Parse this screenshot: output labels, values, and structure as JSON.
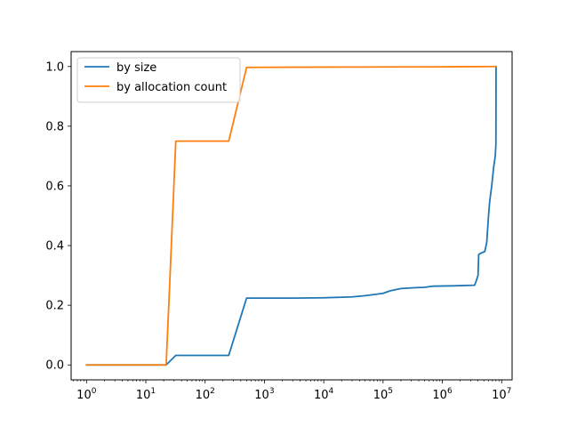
{
  "chart_data": {
    "type": "line",
    "title": "",
    "xlabel": "",
    "ylabel": "",
    "x_scale": "log",
    "xlim": [
      0.55,
      15000000
    ],
    "ylim": [
      -0.05,
      1.05
    ],
    "grid": false,
    "legend_position": "top-left",
    "x_ticks": [
      {
        "value": 1,
        "base": "10",
        "exp": "0"
      },
      {
        "value": 10,
        "base": "10",
        "exp": "1"
      },
      {
        "value": 100,
        "base": "10",
        "exp": "2"
      },
      {
        "value": 1000,
        "base": "10",
        "exp": "3"
      },
      {
        "value": 10000,
        "base": "10",
        "exp": "4"
      },
      {
        "value": 100000,
        "base": "10",
        "exp": "5"
      },
      {
        "value": 1000000,
        "base": "10",
        "exp": "6"
      },
      {
        "value": 10000000,
        "base": "10",
        "exp": "7"
      }
    ],
    "y_ticks": [
      {
        "value": 0.0,
        "label": "0.0"
      },
      {
        "value": 0.2,
        "label": "0.2"
      },
      {
        "value": 0.4,
        "label": "0.4"
      },
      {
        "value": 0.6,
        "label": "0.6"
      },
      {
        "value": 0.8,
        "label": "0.8"
      },
      {
        "value": 1.0,
        "label": "1.0"
      }
    ],
    "series": [
      {
        "name": "by size",
        "color": "#1f77b4",
        "points": [
          [
            1,
            0.0
          ],
          [
            22,
            0.0
          ],
          [
            32,
            0.032
          ],
          [
            250,
            0.032
          ],
          [
            500,
            0.224
          ],
          [
            3000,
            0.224
          ],
          [
            10000,
            0.225
          ],
          [
            30000,
            0.228
          ],
          [
            50000,
            0.232
          ],
          [
            100000,
            0.24
          ],
          [
            130000,
            0.248
          ],
          [
            200000,
            0.256
          ],
          [
            350000,
            0.259
          ],
          [
            500000,
            0.26
          ],
          [
            700000,
            0.264
          ],
          [
            1500000,
            0.265
          ],
          [
            3500000,
            0.267
          ],
          [
            3700000,
            0.28
          ],
          [
            4000000,
            0.3
          ],
          [
            4100000,
            0.37
          ],
          [
            4500000,
            0.375
          ],
          [
            5200000,
            0.38
          ],
          [
            5600000,
            0.41
          ],
          [
            6000000,
            0.5
          ],
          [
            6300000,
            0.55
          ],
          [
            6800000,
            0.6
          ],
          [
            7300000,
            0.66
          ],
          [
            7800000,
            0.7
          ],
          [
            8000000,
            0.74
          ],
          [
            8050000,
            1.0
          ]
        ]
      },
      {
        "name": "by allocation count",
        "color": "#ff7f0e",
        "points": [
          [
            1,
            0.0
          ],
          [
            22,
            0.0
          ],
          [
            25,
            0.25
          ],
          [
            32,
            0.75
          ],
          [
            250,
            0.75
          ],
          [
            500,
            0.997
          ],
          [
            10000,
            0.998
          ],
          [
            1000000,
            0.999
          ],
          [
            8000000,
            1.0
          ]
        ]
      }
    ]
  }
}
